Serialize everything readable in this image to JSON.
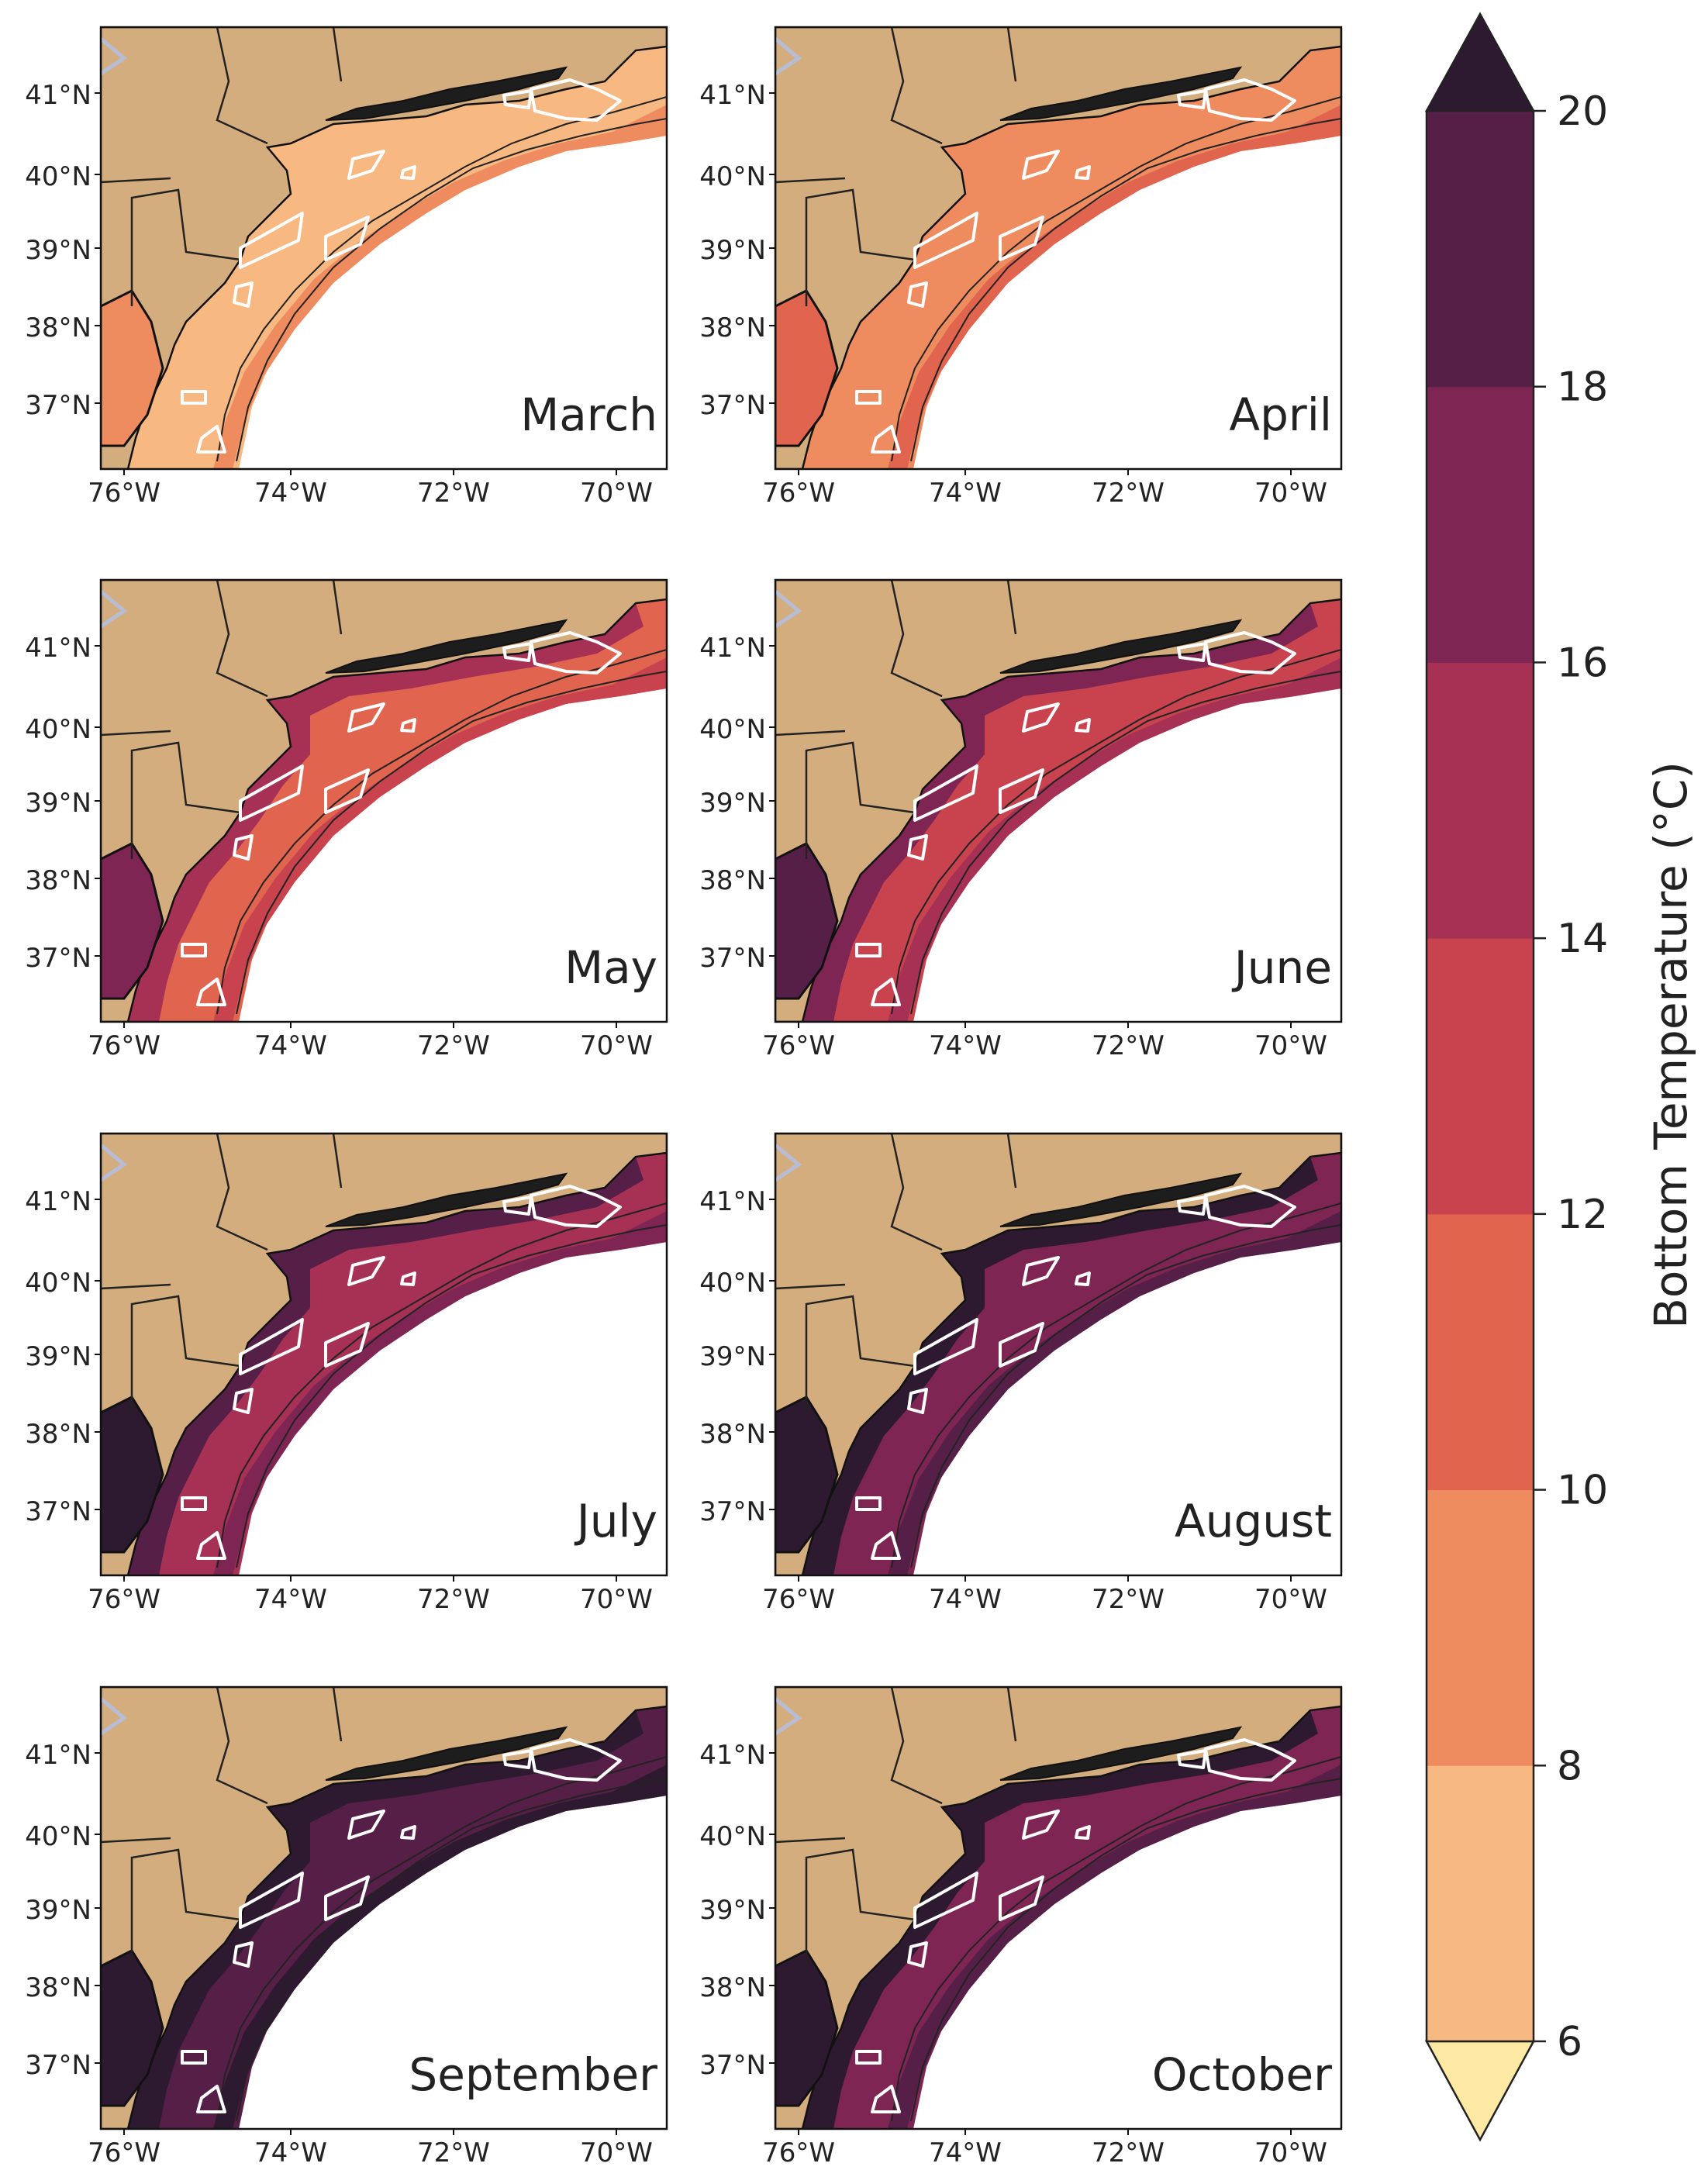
{
  "figure": {
    "latitude_labels": [
      "41°N",
      "40°N",
      "39°N",
      "38°N",
      "37°N"
    ],
    "longitude_labels": [
      "76°W",
      "74°W",
      "72°W",
      "70°W"
    ],
    "panels": [
      {
        "month": "March",
        "level": 0
      },
      {
        "month": "April",
        "level": 1
      },
      {
        "month": "May",
        "level": 2
      },
      {
        "month": "June",
        "level": 3
      },
      {
        "month": "July",
        "level": 4
      },
      {
        "month": "August",
        "level": 5
      },
      {
        "month": "September",
        "level": 6
      },
      {
        "month": "October",
        "level": 5
      }
    ]
  },
  "colorbar": {
    "label": "Bottom Temperature (°C)",
    "ticks": [
      "6",
      "8",
      "10",
      "12",
      "14",
      "16",
      "18",
      "20"
    ],
    "bins": [
      {
        "range": "<6",
        "color": "#fde9a3"
      },
      {
        "range": "6-8",
        "color": "#f7b882"
      },
      {
        "range": "8-10",
        "color": "#ef8c5f"
      },
      {
        "range": "10-12",
        "color": "#e1644f"
      },
      {
        "range": "12-14",
        "color": "#c9434f"
      },
      {
        "range": "14-16",
        "color": "#a63155"
      },
      {
        "range": "16-18",
        "color": "#7e2554"
      },
      {
        "range": "18-20",
        "color": "#561f47"
      },
      {
        "range": ">20",
        "color": "#2e1a30"
      }
    ]
  },
  "colors": {
    "land": "#d4ad7f",
    "wind_areas": "#ffffff",
    "coastline": "#111111"
  }
}
